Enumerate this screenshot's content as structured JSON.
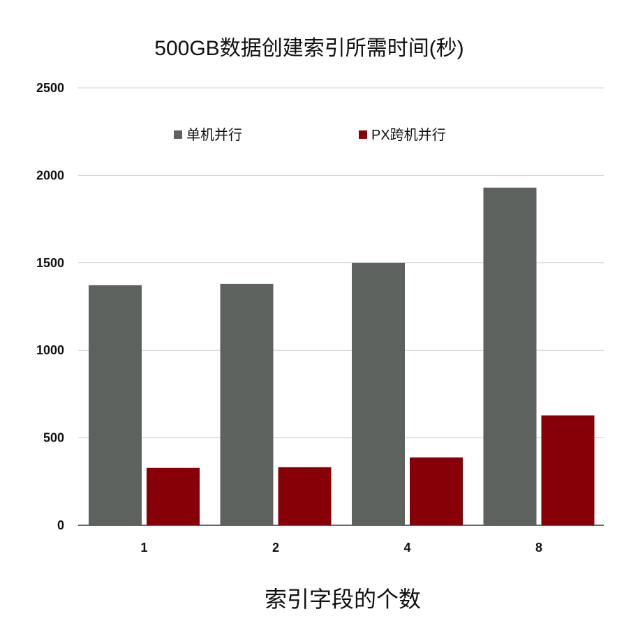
{
  "chart_data": {
    "type": "bar",
    "title": "500GB数据创建索引所需时间(秒)",
    "xlabel": "索引字段的个数",
    "ylabel": "",
    "categories": [
      "1",
      "2",
      "4",
      "8"
    ],
    "series": [
      {
        "name": "单机并行",
        "values": [
          1372,
          1380,
          1500,
          1930
        ],
        "color": "#5d625f"
      },
      {
        "name": "PX跨机并行",
        "values": [
          328,
          332,
          388,
          628
        ],
        "color": "#870008"
      }
    ],
    "ylim": [
      0,
      2500
    ],
    "yticks": [
      0,
      500,
      1000,
      1500,
      2000,
      2500
    ],
    "grid": true,
    "legend": "top-center"
  }
}
